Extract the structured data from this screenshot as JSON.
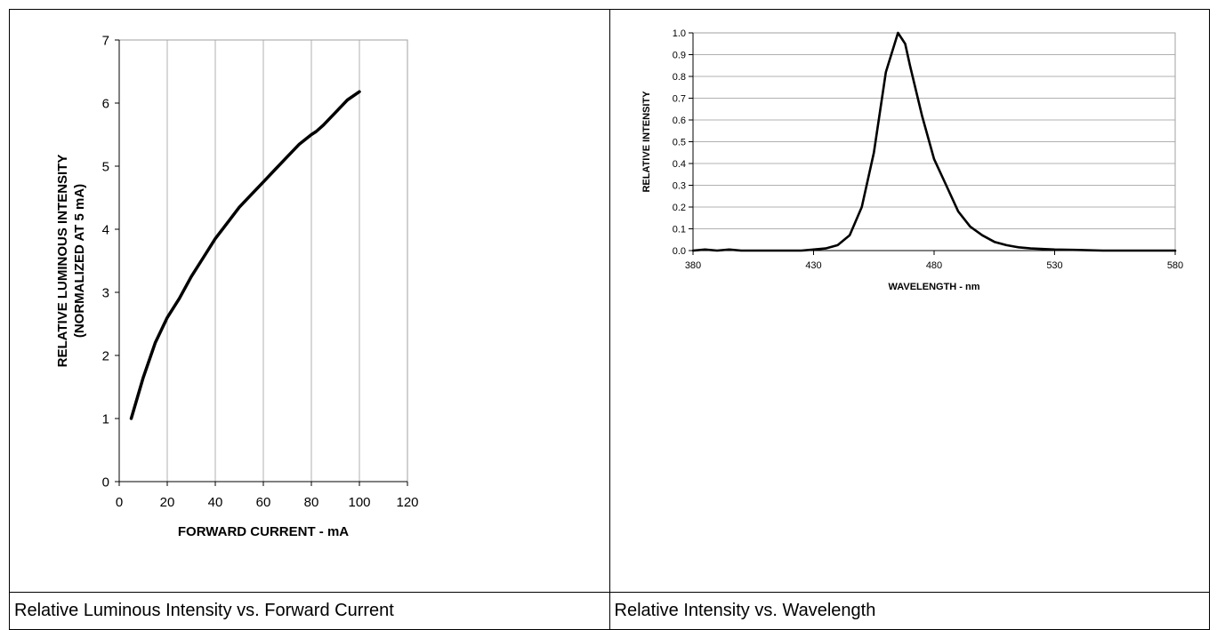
{
  "captions": {
    "left": "Relative Luminous Intensity vs. Forward Current",
    "right": "Relative Intensity vs. Wavelength"
  },
  "chart_data": [
    {
      "type": "line",
      "title": "",
      "xlabel": "FORWARD CURRENT - mA",
      "ylabel_lines": [
        "RELATIVE LUMINOUS INTENSITY",
        "(NORMALIZED AT 5 mA)"
      ],
      "xlim": [
        0,
        120
      ],
      "ylim": [
        0,
        7
      ],
      "xticks": [
        "0",
        "20",
        "40",
        "60",
        "80",
        "100",
        "120"
      ],
      "yticks": [
        "0",
        "1",
        "2",
        "3",
        "4",
        "5",
        "6",
        "7"
      ],
      "grid": "x-major",
      "series": [
        {
          "color": "#000000",
          "x": [
            5,
            10,
            15,
            20,
            25,
            30,
            35,
            40,
            45,
            50,
            55,
            60,
            65,
            70,
            75,
            80,
            82,
            85,
            90,
            95,
            100
          ],
          "y": [
            1.0,
            1.65,
            2.2,
            2.6,
            2.9,
            3.25,
            3.55,
            3.85,
            4.1,
            4.35,
            4.55,
            4.75,
            4.95,
            5.15,
            5.35,
            5.5,
            5.55,
            5.65,
            5.85,
            6.05,
            6.18
          ]
        }
      ]
    },
    {
      "type": "line",
      "title": "",
      "xlabel": "WAVELENGTH - nm",
      "ylabel": "RELATIVE INTENSITY",
      "xlim": [
        380,
        580
      ],
      "ylim": [
        0,
        1.0
      ],
      "xticks": [
        "380",
        "430",
        "480",
        "530",
        "580"
      ],
      "yticks": [
        "0.0",
        "0.1",
        "0.2",
        "0.3",
        "0.4",
        "0.5",
        "0.6",
        "0.7",
        "0.8",
        "0.9",
        "1.0"
      ],
      "grid": "y-major",
      "series": [
        {
          "color": "#000000",
          "x": [
            380,
            385,
            390,
            395,
            400,
            405,
            410,
            415,
            420,
            425,
            430,
            435,
            440,
            445,
            450,
            455,
            460,
            465,
            468,
            470,
            475,
            480,
            485,
            490,
            495,
            500,
            505,
            510,
            515,
            520,
            530,
            540,
            550,
            560,
            570,
            580
          ],
          "y": [
            0.0,
            0.005,
            0.0,
            0.005,
            0.0,
            0.0,
            0.0,
            0.0,
            0.0,
            0.0,
            0.005,
            0.01,
            0.025,
            0.07,
            0.2,
            0.45,
            0.82,
            1.0,
            0.95,
            0.85,
            0.62,
            0.42,
            0.3,
            0.18,
            0.11,
            0.07,
            0.04,
            0.025,
            0.015,
            0.01,
            0.005,
            0.003,
            0.0,
            0.0,
            0.0,
            0.0
          ]
        }
      ]
    }
  ]
}
